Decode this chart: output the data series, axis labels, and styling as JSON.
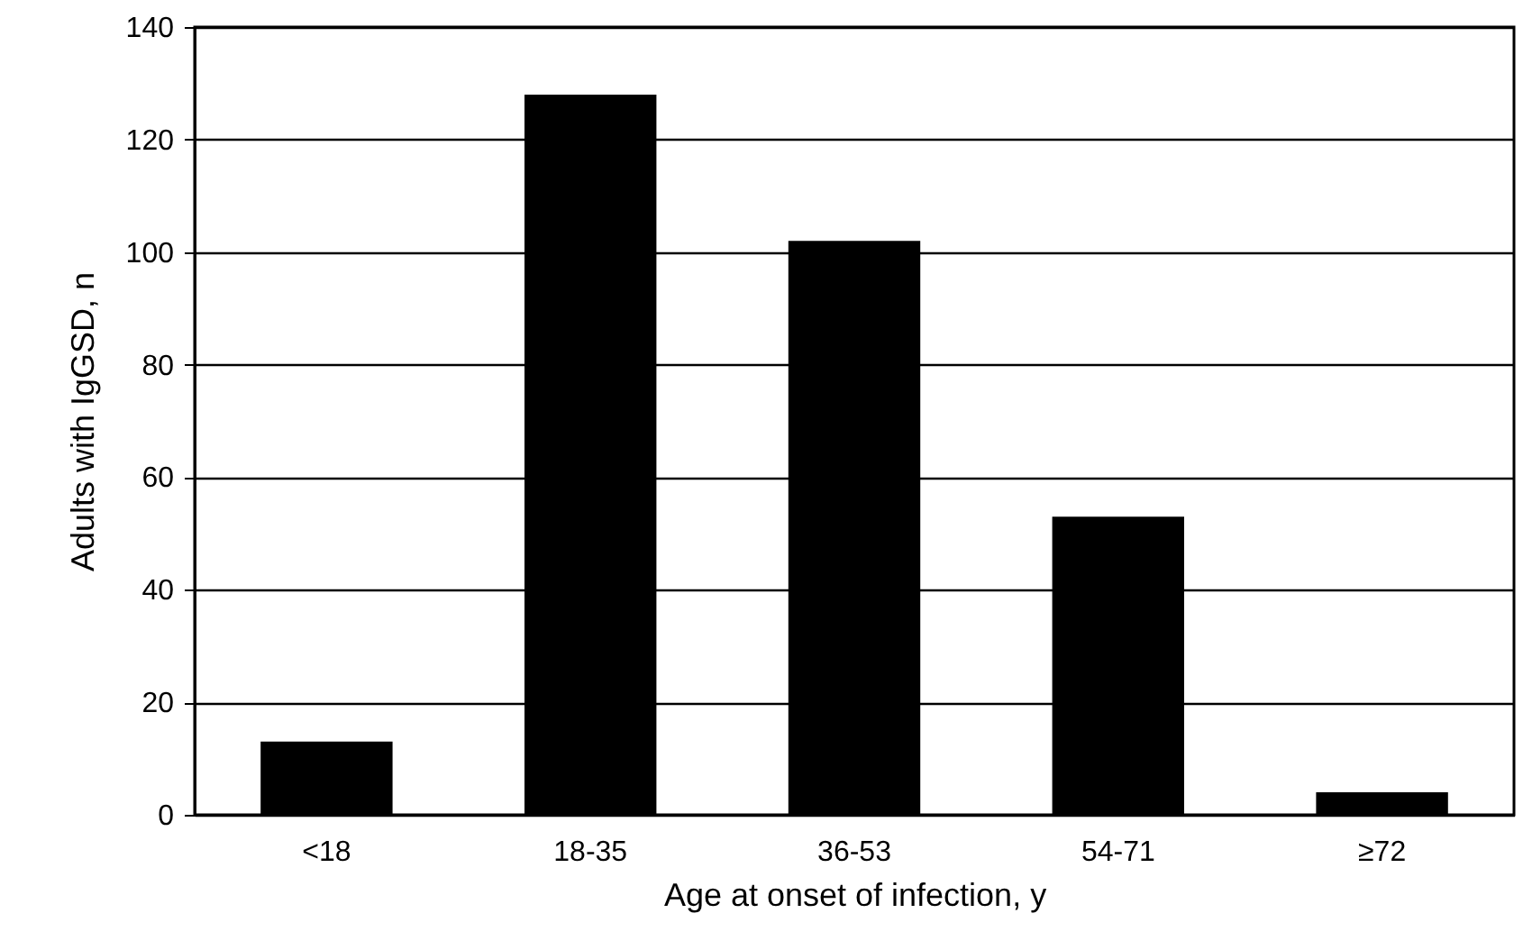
{
  "chart_data": {
    "type": "bar",
    "xlabel": "Age at onset of infection, y",
    "ylabel": "Adults with IgGSD, n",
    "categories": [
      "<18",
      "18-35",
      "36-53",
      "54-71",
      "≥72"
    ],
    "values": [
      13,
      128,
      102,
      53,
      4
    ],
    "color": "#000000",
    "ylim": [
      0,
      140
    ],
    "yticks": [
      0,
      20,
      40,
      60,
      80,
      100,
      120,
      140
    ],
    "grid": "y"
  }
}
